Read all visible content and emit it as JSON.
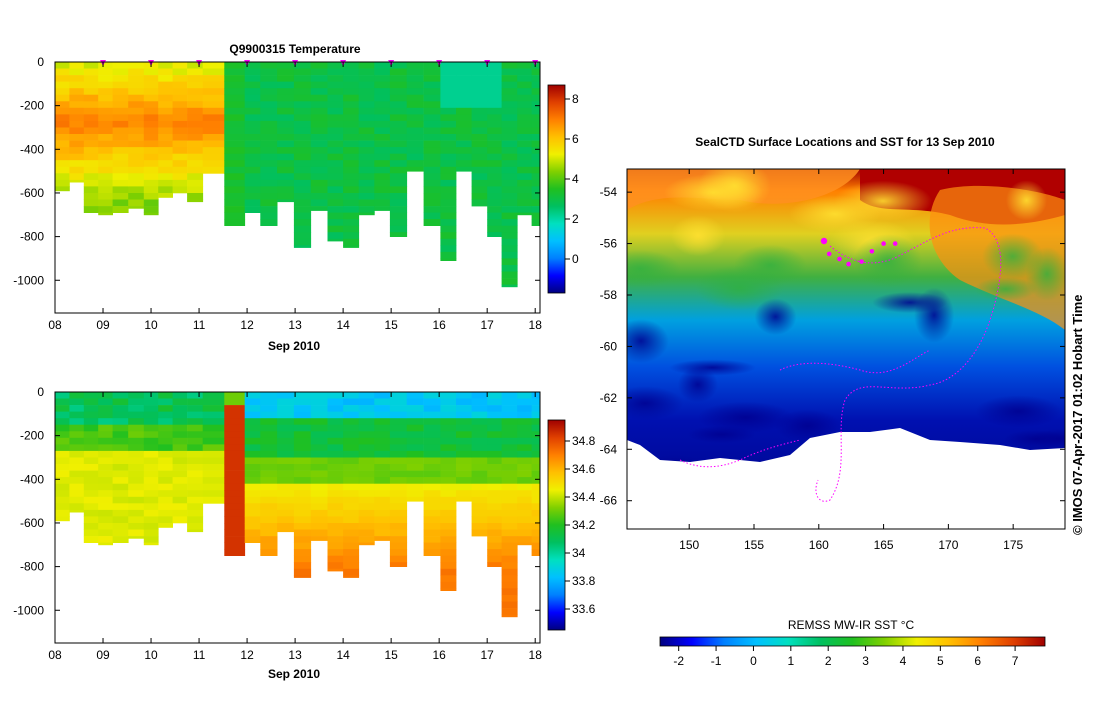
{
  "watermark": "© IMOS 07-Apr-2017 01:02 Hobart Time",
  "colors": {
    "scale": [
      "#000080",
      "#0000ff",
      "#0080ff",
      "#00c0ff",
      "#00e0c0",
      "#00c060",
      "#20c020",
      "#80d000",
      "#f0f000",
      "#ffc000",
      "#ff8000",
      "#e04000",
      "#a00000"
    ],
    "track": "#ff00ff",
    "land": "#ffffff"
  },
  "chart_data": [
    {
      "id": "temperature",
      "type": "heatmap",
      "title": "Q9900315  Temperature",
      "xlabel": "Sep 2010",
      "ylabel": "",
      "x_ticks": [
        "08",
        "09",
        "10",
        "11",
        "12",
        "13",
        "14",
        "15",
        "16",
        "17",
        "18"
      ],
      "y_ticks": [
        "0",
        "-200",
        "-400",
        "-600",
        "-800",
        "-1000"
      ],
      "xlim": [
        8.0,
        18.1
      ],
      "ylim": [
        -1150,
        0
      ],
      "colorbar": {
        "ticks": [
          "8",
          "6",
          "4",
          "2",
          "0"
        ],
        "range": [
          -1.7,
          8.7
        ]
      },
      "surfacing_days": [
        9.0,
        10.0,
        11.0,
        12.0,
        13.0,
        14.0,
        15.0,
        16.0,
        17.0,
        18.0
      ],
      "profiles": [
        {
          "x": 8.15,
          "depth": -590
        },
        {
          "x": 8.45,
          "depth": -550
        },
        {
          "x": 8.75,
          "depth": -690
        },
        {
          "x": 9.05,
          "depth": -700
        },
        {
          "x": 9.35,
          "depth": -690
        },
        {
          "x": 9.7,
          "depth": -670
        },
        {
          "x": 10.0,
          "depth": -700
        },
        {
          "x": 10.3,
          "depth": -620
        },
        {
          "x": 10.6,
          "depth": -600
        },
        {
          "x": 10.9,
          "depth": -640
        },
        {
          "x": 11.25,
          "depth": -510
        },
        {
          "x": 11.8,
          "depth": -750
        },
        {
          "x": 12.1,
          "depth": -690
        },
        {
          "x": 12.45,
          "depth": -750
        },
        {
          "x": 12.8,
          "depth": -640
        },
        {
          "x": 13.15,
          "depth": -850
        },
        {
          "x": 13.5,
          "depth": -680
        },
        {
          "x": 13.85,
          "depth": -820
        },
        {
          "x": 14.15,
          "depth": -850
        },
        {
          "x": 14.5,
          "depth": -700
        },
        {
          "x": 14.8,
          "depth": -680
        },
        {
          "x": 15.15,
          "depth": -800
        },
        {
          "x": 15.5,
          "depth": -500
        },
        {
          "x": 15.85,
          "depth": -750
        },
        {
          "x": 16.2,
          "depth": -910
        },
        {
          "x": 16.5,
          "depth": -500
        },
        {
          "x": 16.85,
          "depth": -660
        },
        {
          "x": 17.15,
          "depth": -800
        },
        {
          "x": 17.45,
          "depth": -1030
        },
        {
          "x": 17.8,
          "depth": -700
        },
        {
          "x": 18.05,
          "depth": -750
        }
      ]
    },
    {
      "id": "salinity",
      "type": "heatmap",
      "title": "",
      "xlabel": "Sep 2010",
      "ylabel": "",
      "x_ticks": [
        "08",
        "09",
        "10",
        "11",
        "12",
        "13",
        "14",
        "15",
        "16",
        "17",
        "18"
      ],
      "y_ticks": [
        "0",
        "-200",
        "-400",
        "-600",
        "-800",
        "-1000"
      ],
      "xlim": [
        8.0,
        18.1
      ],
      "ylim": [
        -1150,
        0
      ],
      "colorbar": {
        "ticks": [
          "34.8",
          "34.6",
          "34.4",
          "34.2",
          "34",
          "33.8",
          "33.6"
        ],
        "range": [
          33.45,
          34.95
        ]
      }
    },
    {
      "id": "sst-map",
      "type": "heatmap",
      "title": "SealCTD Surface Locations and SST for 13 Sep 2010",
      "xlabel": "",
      "ylabel": "",
      "x_ticks": [
        "150",
        "155",
        "160",
        "165",
        "170",
        "175"
      ],
      "y_ticks": [
        "-54",
        "-56",
        "-58",
        "-60",
        "-62",
        "-64",
        "-66"
      ],
      "xlim": [
        145.2,
        179.0
      ],
      "ylim": [
        -67.1,
        -53.1
      ],
      "colorbar": {
        "label": "REMSS MW-IR SST °C",
        "ticks": [
          "-2",
          "-1",
          "0",
          "1",
          "2",
          "3",
          "4",
          "5",
          "6",
          "7"
        ],
        "range": [
          -2.5,
          7.8
        ]
      },
      "surface_locations": [
        {
          "lon": 160.4,
          "lat": -55.9
        },
        {
          "lon": 160.8,
          "lat": -56.4
        },
        {
          "lon": 161.6,
          "lat": -56.6
        },
        {
          "lon": 162.3,
          "lat": -56.8
        },
        {
          "lon": 163.3,
          "lat": -56.7
        },
        {
          "lon": 164.1,
          "lat": -56.3
        },
        {
          "lon": 165.0,
          "lat": -56.0
        },
        {
          "lon": 165.9,
          "lat": -56.0
        }
      ]
    }
  ]
}
